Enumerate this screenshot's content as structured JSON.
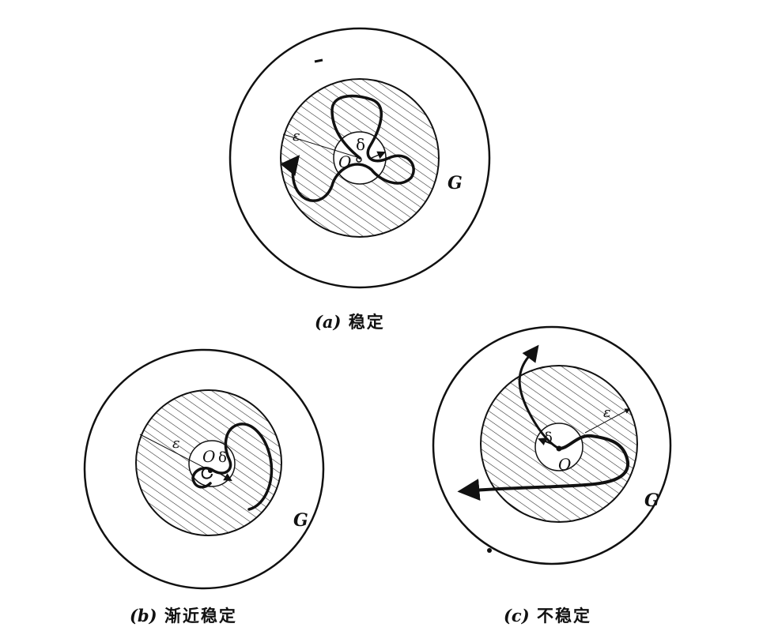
{
  "figures": [
    {
      "id": "a",
      "label": "(a)",
      "caption": "稳定",
      "region_label": "G",
      "origin_label": "O",
      "epsilon_label": "ε",
      "delta_label": "δ"
    },
    {
      "id": "b",
      "label": "(b)",
      "caption": "渐近稳定",
      "region_label": "G",
      "origin_label": "O",
      "epsilon_label": "ε",
      "delta_label": "δ"
    },
    {
      "id": "c",
      "label": "(c)",
      "caption": "不稳定",
      "region_label": "G",
      "origin_label": "O",
      "epsilon_label": "ε",
      "delta_label": "δ"
    }
  ]
}
